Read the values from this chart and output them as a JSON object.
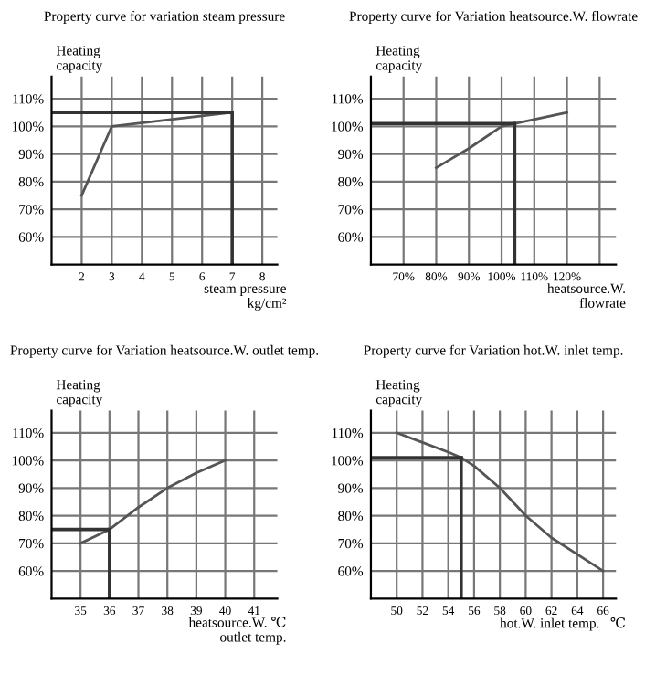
{
  "chart_data": [
    {
      "type": "line",
      "title": "Property curve for variation steam pressure",
      "xlabel": "steam pressure\nkg/cm²",
      "ylabel": "Heating\ncapacity",
      "x": [
        2,
        3,
        7
      ],
      "series": [
        {
          "color": "#555555",
          "values": [
            75,
            100,
            105
          ]
        }
      ],
      "xlim": [
        1,
        8.5
      ],
      "ylim": [
        50,
        118
      ],
      "xticks": [
        2,
        3,
        4,
        5,
        6,
        7,
        8
      ],
      "yticks": [
        {
          "value": 60,
          "label": "60%"
        },
        {
          "value": 70,
          "label": "70%"
        },
        {
          "value": 80,
          "label": "80%"
        },
        {
          "value": 90,
          "label": "90%"
        },
        {
          "value": 100,
          "label": "100%"
        },
        {
          "value": 110,
          "label": "110%"
        }
      ],
      "grid": true,
      "marker": "none",
      "line_style": "solid",
      "ref_lines": [
        {
          "axis": "y",
          "value": 105,
          "color": "#333333"
        },
        {
          "axis": "x",
          "value": 7,
          "color": "#333333"
        }
      ]
    },
    {
      "type": "line",
      "title": "Property curve for Variation heatsource.W. flowrate",
      "xlabel": "heatsource.W.\nflowrate",
      "ylabel": "Heating\ncapacity",
      "x": [
        80,
        90,
        100,
        120
      ],
      "series": [
        {
          "color": "#555555",
          "values": [
            85,
            92,
            100,
            105
          ]
        }
      ],
      "xlim": [
        60,
        135
      ],
      "ylim": [
        50,
        118
      ],
      "xticks": [
        {
          "value": 70,
          "label": "70%"
        },
        {
          "value": 80,
          "label": "80%"
        },
        {
          "value": 90,
          "label": "90%"
        },
        {
          "value": 100,
          "label": "100%"
        },
        {
          "value": 110,
          "label": "110%"
        },
        {
          "value": 120,
          "label": "120%"
        },
        {
          "value": 130,
          "label": null
        }
      ],
      "yticks": [
        {
          "value": 60,
          "label": "60%"
        },
        {
          "value": 70,
          "label": "70%"
        },
        {
          "value": 80,
          "label": "80%"
        },
        {
          "value": 90,
          "label": "90%"
        },
        {
          "value": 100,
          "label": "100%"
        },
        {
          "value": 110,
          "label": "110%"
        }
      ],
      "grid": true,
      "marker": "none",
      "line_style": "solid",
      "ref_lines": [
        {
          "axis": "y",
          "value": 101,
          "color": "#333333"
        },
        {
          "axis": "x",
          "value": 104,
          "color": "#333333"
        }
      ]
    },
    {
      "type": "line",
      "title": "Property curve for Variation heatsource.W. outlet temp.",
      "xlabel": "heatsource.W. ℃\noutlet temp.",
      "ylabel": "Heating\ncapacity",
      "x": [
        35,
        36,
        37,
        38,
        39,
        40
      ],
      "series": [
        {
          "color": "#555555",
          "values": [
            70,
            75,
            83,
            90,
            95.5,
            100
          ]
        }
      ],
      "xlim": [
        34,
        41.8
      ],
      "ylim": [
        50,
        118
      ],
      "xticks": [
        35,
        36,
        37,
        38,
        39,
        40,
        41
      ],
      "yticks": [
        {
          "value": 60,
          "label": "60%"
        },
        {
          "value": 70,
          "label": "70%"
        },
        {
          "value": 80,
          "label": "80%"
        },
        {
          "value": 90,
          "label": "90%"
        },
        {
          "value": 100,
          "label": "100%"
        },
        {
          "value": 110,
          "label": "110%"
        }
      ],
      "grid": true,
      "marker": "none",
      "line_style": "solid",
      "ref_lines": [
        {
          "axis": "y",
          "value": 75,
          "color": "#333333"
        },
        {
          "axis": "x",
          "value": 36,
          "color": "#333333"
        }
      ]
    },
    {
      "type": "line",
      "title": "Property curve for Variation hot.W. inlet temp.",
      "xlabel": "hot.W. inlet temp.   ℃",
      "ylabel": "Heating\ncapacity",
      "x": [
        50,
        52,
        54,
        55,
        56,
        58,
        60,
        62,
        64,
        66
      ],
      "series": [
        {
          "color": "#555555",
          "values": [
            110,
            106.5,
            103,
            101,
            98,
            90,
            80,
            72,
            66,
            60
          ]
        }
      ],
      "xlim": [
        48,
        67
      ],
      "ylim": [
        50,
        118
      ],
      "xticks": [
        50,
        52,
        54,
        56,
        58,
        60,
        62,
        64,
        66
      ],
      "yticks": [
        {
          "value": 60,
          "label": "60%"
        },
        {
          "value": 70,
          "label": "70%"
        },
        {
          "value": 80,
          "label": "80%"
        },
        {
          "value": 90,
          "label": "90%"
        },
        {
          "value": 100,
          "label": "100%"
        },
        {
          "value": 110,
          "label": "110%"
        }
      ],
      "grid": true,
      "marker": "none",
      "line_style": "solid",
      "ref_lines": [
        {
          "axis": "y",
          "value": 101,
          "color": "#333333"
        },
        {
          "axis": "x",
          "value": 55,
          "color": "#333333"
        }
      ]
    }
  ]
}
